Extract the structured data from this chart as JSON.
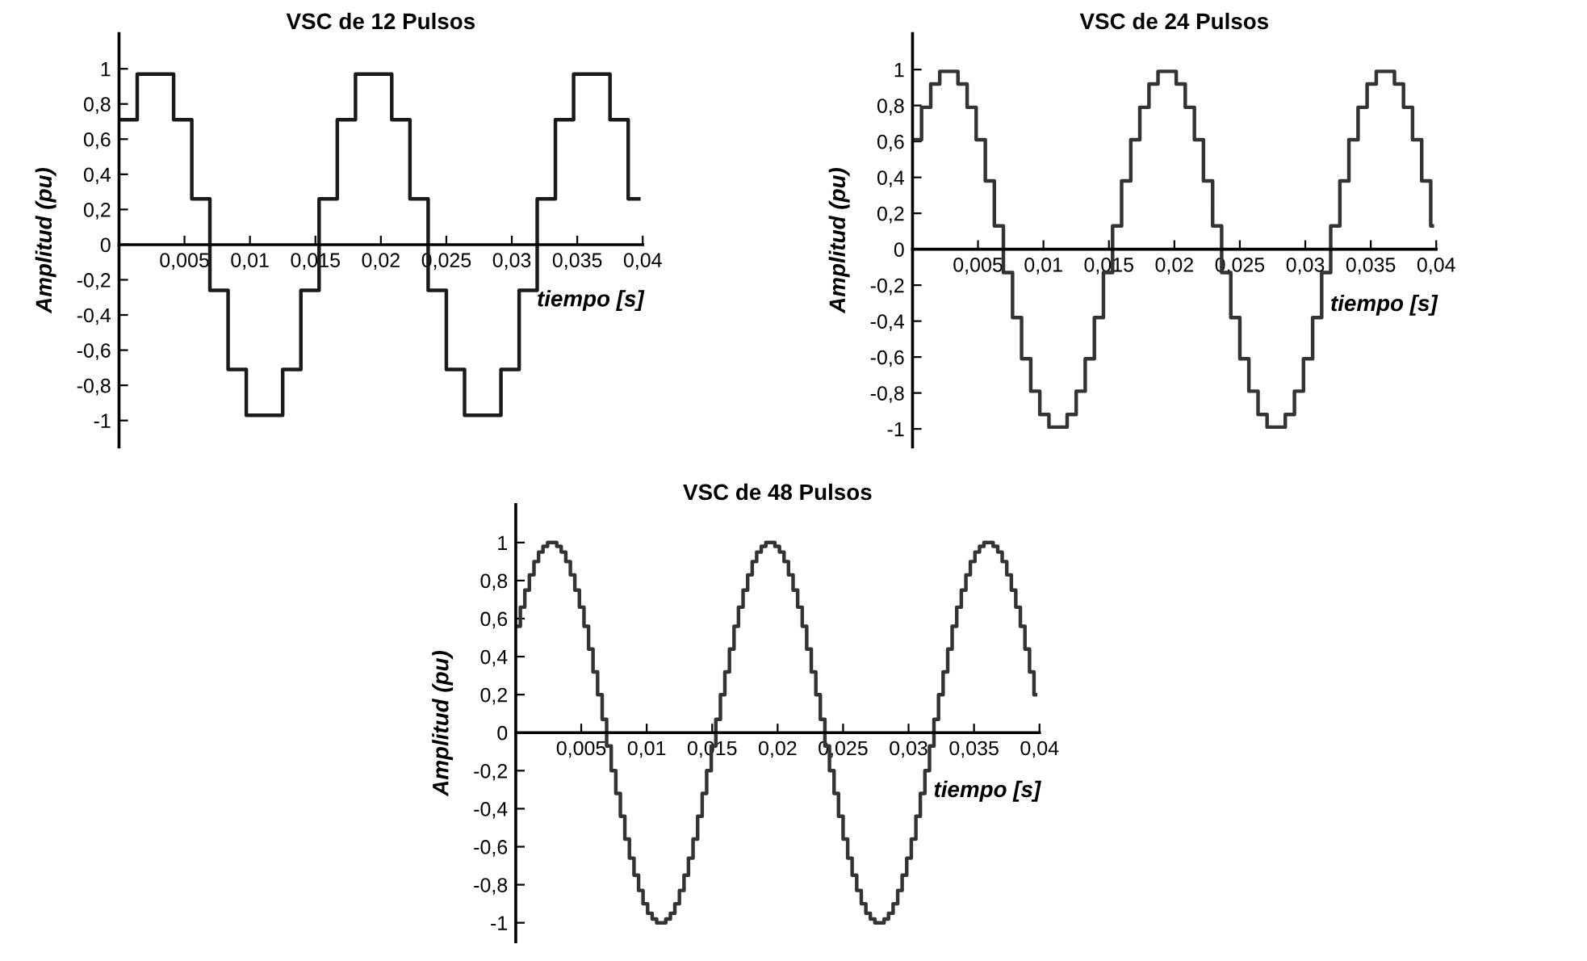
{
  "chart_data": [
    {
      "type": "step",
      "title": "VSC de 12 Pulsos",
      "xlabel": "tiempo [s]",
      "ylabel": "Amplitud (pu)",
      "color": "#1a1a1a",
      "x": [
        0,
        0.00139,
        0.00417,
        0.00556,
        0.00694,
        0.00833,
        0.00972,
        0.0125,
        0.01389,
        0.01528,
        0.01667,
        0.01806,
        0.02083,
        0.02222,
        0.02361,
        0.025,
        0.02639,
        0.02917,
        0.03056,
        0.03194,
        0.03333,
        0.03472,
        0.0375,
        0.03889,
        0.0397
      ],
      "values": [
        0.71,
        0.97,
        0.71,
        0.26,
        -0.26,
        -0.71,
        -0.97,
        -0.71,
        -0.26,
        0.26,
        0.71,
        0.97,
        0.71,
        0.26,
        -0.26,
        -0.71,
        -0.97,
        -0.71,
        -0.26,
        0.26,
        0.71,
        0.97,
        0.71,
        0.26,
        0.26
      ],
      "xlim": [
        0,
        0.04
      ],
      "ylim": [
        -1.15,
        1.2
      ],
      "xticks": [
        {
          "value": 0.005,
          "label": "0,005"
        },
        {
          "value": 0.01,
          "label": "0,01"
        },
        {
          "value": 0.015,
          "label": "0,015"
        },
        {
          "value": 0.02,
          "label": "0,02"
        },
        {
          "value": 0.025,
          "label": "0,025"
        },
        {
          "value": 0.03,
          "label": "0,03"
        },
        {
          "value": 0.035,
          "label": "0,035"
        },
        {
          "value": 0.04,
          "label": "0,04"
        }
      ],
      "yticks": [
        {
          "value": -1,
          "label": "-1"
        },
        {
          "value": -0.8,
          "label": "-0,8"
        },
        {
          "value": -0.6,
          "label": "-0,6"
        },
        {
          "value": -0.4,
          "label": "-0,4"
        },
        {
          "value": -0.2,
          "label": "-0,2"
        },
        0,
        {
          "value": 0.2,
          "label": "0,2"
        },
        {
          "value": 0.4,
          "label": "0,4"
        },
        {
          "value": 0.6,
          "label": "0,6"
        },
        {
          "value": 0.8,
          "label": "0,8"
        },
        1
      ]
    },
    {
      "type": "step",
      "title": "VSC de 24 Pulsos",
      "xlabel": "tiempo [s]",
      "ylabel": "Amplitud (pu)",
      "color": "#333333",
      "x": [
        0,
        0.00069,
        0.00139,
        0.00208,
        0.00278,
        0.00347,
        0.00417,
        0.00486,
        0.00556,
        0.00625,
        0.00694,
        0.00764,
        0.00833,
        0.00903,
        0.00972,
        0.01042,
        0.01111,
        0.01181,
        0.0125,
        0.01319,
        0.01389,
        0.01458,
        0.01528,
        0.01597,
        0.01667,
        0.01736,
        0.01806,
        0.01875,
        0.01944,
        0.02014,
        0.02083,
        0.02153,
        0.02222,
        0.02292,
        0.02361,
        0.02431,
        0.025,
        0.02569,
        0.02639,
        0.02708,
        0.02778,
        0.02847,
        0.02917,
        0.02986,
        0.03056,
        0.03125,
        0.03194,
        0.03264,
        0.03333,
        0.03403,
        0.03472,
        0.03542,
        0.03611,
        0.03681,
        0.0375,
        0.03819,
        0.03889,
        0.03958,
        0.0397
      ],
      "values": [
        0.61,
        0.79,
        0.92,
        0.99,
        0.99,
        0.92,
        0.79,
        0.61,
        0.38,
        0.13,
        -0.13,
        -0.38,
        -0.61,
        -0.79,
        -0.92,
        -0.99,
        -0.99,
        -0.92,
        -0.79,
        -0.61,
        -0.38,
        -0.13,
        0.13,
        0.38,
        0.61,
        0.79,
        0.92,
        0.99,
        0.99,
        0.92,
        0.79,
        0.61,
        0.38,
        0.13,
        -0.13,
        -0.38,
        -0.61,
        -0.79,
        -0.92,
        -0.99,
        -0.99,
        -0.92,
        -0.79,
        -0.61,
        -0.38,
        -0.13,
        0.13,
        0.38,
        0.61,
        0.79,
        0.92,
        0.99,
        0.99,
        0.92,
        0.79,
        0.61,
        0.38,
        0.13,
        0.13
      ],
      "xlim": [
        0,
        0.04
      ],
      "ylim": [
        -1.1,
        1.2
      ],
      "xticks": [
        {
          "value": 0.005,
          "label": "0,005"
        },
        {
          "value": 0.01,
          "label": "0,01"
        },
        {
          "value": 0.015,
          "label": "0,015"
        },
        {
          "value": 0.02,
          "label": "0,02"
        },
        {
          "value": 0.025,
          "label": "0,025"
        },
        {
          "value": 0.03,
          "label": "0,03"
        },
        {
          "value": 0.035,
          "label": "0,035"
        },
        {
          "value": 0.04,
          "label": "0,04"
        }
      ],
      "yticks": [
        {
          "value": -1,
          "label": "-1"
        },
        {
          "value": -0.8,
          "label": "-0,8"
        },
        {
          "value": -0.6,
          "label": "-0,6"
        },
        {
          "value": -0.4,
          "label": "-0,4"
        },
        {
          "value": -0.2,
          "label": "-0,2"
        },
        0,
        {
          "value": 0.2,
          "label": "0,2"
        },
        {
          "value": 0.4,
          "label": "0,4"
        },
        {
          "value": 0.6,
          "label": "0,6"
        },
        {
          "value": 0.8,
          "label": "0,8"
        },
        1
      ]
    },
    {
      "type": "step",
      "title": "VSC de 48 Pulsos",
      "xlabel": "tiempo [s]",
      "ylabel": "Amplitud (pu)",
      "color": "#333333",
      "x": [
        0,
        0.00035,
        0.00069,
        0.00104,
        0.00139,
        0.00174,
        0.00208,
        0.00243,
        0.00278,
        0.00313,
        0.00347,
        0.00382,
        0.00417,
        0.00451,
        0.00486,
        0.00521,
        0.00556,
        0.0059,
        0.00625,
        0.0066,
        0.00694,
        0.00729,
        0.00764,
        0.00799,
        0.00833,
        0.00868,
        0.00903,
        0.00938,
        0.00972,
        0.01007,
        0.01042,
        0.01076,
        0.01111,
        0.01146,
        0.01181,
        0.01215,
        0.0125,
        0.01285,
        0.01319,
        0.01354,
        0.01389,
        0.01424,
        0.01458,
        0.01493,
        0.01528,
        0.01563,
        0.01597,
        0.01632,
        0.01667,
        0.01701,
        0.01736,
        0.01771,
        0.01806,
        0.0184,
        0.01875,
        0.0191,
        0.01944,
        0.01979,
        0.02014,
        0.02049,
        0.02083,
        0.02118,
        0.02153,
        0.02188,
        0.02222,
        0.02257,
        0.02292,
        0.02326,
        0.02361,
        0.02396,
        0.02431,
        0.02465,
        0.025,
        0.02535,
        0.02569,
        0.02604,
        0.02639,
        0.02674,
        0.02708,
        0.02743,
        0.02778,
        0.02813,
        0.02847,
        0.02882,
        0.02917,
        0.02951,
        0.02986,
        0.03021,
        0.03056,
        0.0309,
        0.03125,
        0.0316,
        0.03194,
        0.03229,
        0.03264,
        0.03299,
        0.03333,
        0.03368,
        0.03403,
        0.03438,
        0.03472,
        0.03507,
        0.03542,
        0.03576,
        0.03611,
        0.03646,
        0.03681,
        0.03715,
        0.0375,
        0.03785,
        0.03819,
        0.03854,
        0.03889,
        0.03924,
        0.03958,
        0.0397
      ],
      "values": [
        0.56,
        0.66,
        0.75,
        0.83,
        0.9,
        0.95,
        0.98,
        1,
        1,
        0.98,
        0.95,
        0.9,
        0.83,
        0.75,
        0.66,
        0.56,
        0.44,
        0.32,
        0.2,
        0.07,
        -0.07,
        -0.2,
        -0.32,
        -0.44,
        -0.56,
        -0.66,
        -0.75,
        -0.83,
        -0.9,
        -0.95,
        -0.98,
        -1,
        -1,
        -0.98,
        -0.95,
        -0.9,
        -0.83,
        -0.75,
        -0.66,
        -0.56,
        -0.44,
        -0.32,
        -0.2,
        -0.07,
        0.07,
        0.2,
        0.32,
        0.44,
        0.56,
        0.66,
        0.75,
        0.83,
        0.9,
        0.95,
        0.98,
        1,
        1,
        0.98,
        0.95,
        0.9,
        0.83,
        0.75,
        0.66,
        0.56,
        0.44,
        0.32,
        0.2,
        0.07,
        -0.07,
        -0.2,
        -0.32,
        -0.44,
        -0.56,
        -0.66,
        -0.75,
        -0.83,
        -0.9,
        -0.95,
        -0.98,
        -1,
        -1,
        -0.98,
        -0.95,
        -0.9,
        -0.83,
        -0.75,
        -0.66,
        -0.56,
        -0.44,
        -0.32,
        -0.2,
        -0.07,
        0.07,
        0.2,
        0.32,
        0.44,
        0.56,
        0.66,
        0.75,
        0.83,
        0.9,
        0.95,
        0.98,
        1,
        1,
        0.98,
        0.95,
        0.9,
        0.83,
        0.75,
        0.66,
        0.56,
        0.44,
        0.32,
        0.2,
        0.2
      ],
      "xlim": [
        0,
        0.04
      ],
      "ylim": [
        -1.1,
        1.2
      ],
      "xticks": [
        {
          "value": 0.005,
          "label": "0,005"
        },
        {
          "value": 0.01,
          "label": "0,01"
        },
        {
          "value": 0.015,
          "label": "0,015"
        },
        {
          "value": 0.02,
          "label": "0,02"
        },
        {
          "value": 0.025,
          "label": "0,025"
        },
        {
          "value": 0.03,
          "label": "0,03"
        },
        {
          "value": 0.035,
          "label": "0,035"
        },
        {
          "value": 0.04,
          "label": "0,04"
        }
      ],
      "yticks": [
        {
          "value": -1,
          "label": "-1"
        },
        {
          "value": -0.8,
          "label": "-0,8"
        },
        {
          "value": -0.6,
          "label": "-0,6"
        },
        {
          "value": -0.4,
          "label": "-0,4"
        },
        {
          "value": -0.2,
          "label": "-0,2"
        },
        0,
        {
          "value": 0.2,
          "label": "0,2"
        },
        {
          "value": 0.4,
          "label": "0,4"
        },
        {
          "value": 0.6,
          "label": "0,6"
        },
        {
          "value": 0.8,
          "label": "0,8"
        },
        1
      ]
    }
  ]
}
